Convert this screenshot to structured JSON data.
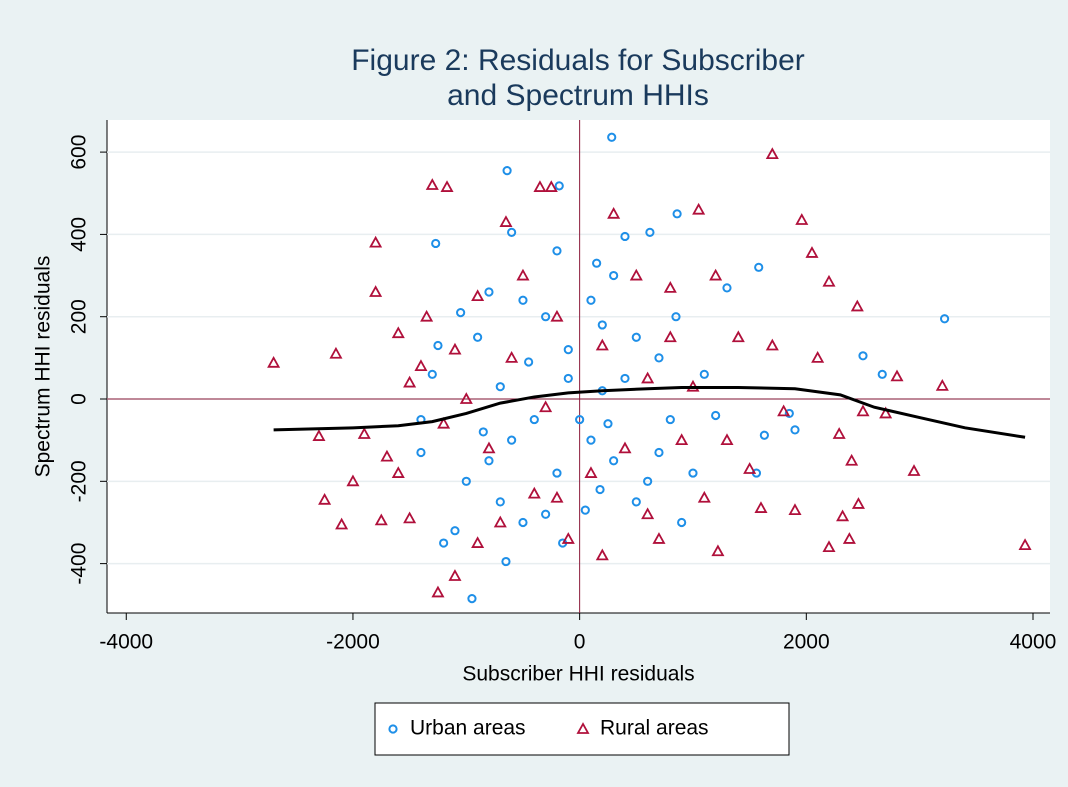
{
  "chart_data": {
    "type": "scatter",
    "title": [
      "Figure 2: Residuals for Subscriber",
      "and Spectrum HHIs"
    ],
    "x_label": "Subscriber HHI residuals",
    "y_label": "Spectrum HHI residuals",
    "xlim": [
      -4170,
      4150
    ],
    "ylim": [
      -520,
      678
    ],
    "xticks": [
      -4000,
      -2000,
      0,
      2000,
      4000
    ],
    "yticks": [
      -400,
      -200,
      0,
      200,
      400,
      600
    ],
    "grid": true,
    "reference_lines": {
      "x": 0,
      "y": 0,
      "color": "#8b1a3a"
    },
    "legend": "bottom",
    "series": [
      {
        "name": "Urban areas",
        "color": "#1e8fe8",
        "marker": "circle",
        "x": [
          283,
          -640,
          -180,
          -1270,
          -600,
          860,
          -200,
          400,
          620,
          1580,
          3220,
          2500,
          2670,
          1630,
          1900,
          1560,
          -1100,
          -1200,
          -950,
          -650,
          900,
          180,
          -1250,
          -1300,
          -800,
          -500,
          -300,
          100,
          300,
          500,
          700,
          -100,
          200,
          -400,
          -600,
          -800,
          100,
          300,
          600,
          -200,
          -700,
          -500,
          -300,
          0,
          400,
          800,
          1100,
          1200,
          -900,
          -1000,
          -700,
          -1400,
          -1400,
          200,
          500,
          -100,
          1000,
          1300,
          -450,
          250,
          700,
          -850,
          -150,
          1850,
          850,
          150,
          -1050,
          50
        ],
        "y": [
          636,
          555,
          518,
          378,
          405,
          450,
          360,
          395,
          405,
          320,
          195,
          105,
          60,
          -88,
          -75,
          -180,
          -320,
          -350,
          -485,
          -395,
          -300,
          -220,
          130,
          60,
          260,
          240,
          200,
          240,
          300,
          150,
          100,
          50,
          20,
          -50,
          -100,
          -150,
          -100,
          -150,
          -200,
          -180,
          -250,
          -300,
          -280,
          -50,
          50,
          -50,
          60,
          -40,
          150,
          -200,
          30,
          -50,
          -130,
          180,
          -250,
          120,
          -180,
          270,
          90,
          -60,
          -130,
          -80,
          -350,
          -35,
          200,
          330,
          210,
          -270
        ]
      },
      {
        "name": "Rural areas",
        "color": "#b0103b",
        "marker": "triangle",
        "x": [
          -2700,
          -2300,
          -2250,
          -2100,
          -2150,
          -1900,
          -1800,
          -1800,
          -1750,
          -1300,
          -1170,
          -1250,
          -1100,
          -650,
          -350,
          -250,
          1050,
          1700,
          1960,
          2050,
          2200,
          2450,
          2290,
          2400,
          2950,
          3200,
          3930,
          2200,
          2380,
          2460,
          2320,
          1600,
          1220,
          200,
          -100,
          700,
          -400,
          -700,
          -1500,
          -1600,
          -1600,
          -1350,
          -900,
          -500,
          300,
          500,
          800,
          1400,
          1700,
          2100,
          2700,
          1800,
          900,
          400,
          100,
          -200,
          -800,
          -1200,
          -1500,
          -1000,
          -600,
          -200,
          200,
          600,
          1000,
          1300,
          1500,
          -1100,
          -1700,
          -2000,
          600,
          1100,
          -900,
          1900,
          -1400,
          2800,
          1200,
          2500,
          -300,
          800
        ],
        "y": [
          88,
          -90,
          -245,
          -305,
          110,
          -85,
          380,
          260,
          -295,
          520,
          515,
          -470,
          -430,
          430,
          515,
          515,
          460,
          595,
          435,
          355,
          285,
          225,
          -85,
          -150,
          -175,
          32,
          -355,
          -360,
          -340,
          -255,
          -285,
          -265,
          -370,
          -380,
          -340,
          -340,
          -230,
          -300,
          -290,
          -180,
          160,
          200,
          250,
          300,
          450,
          300,
          270,
          150,
          130,
          100,
          -35,
          -30,
          -100,
          -120,
          -180,
          -240,
          -120,
          -60,
          40,
          0,
          100,
          200,
          130,
          50,
          30,
          -100,
          -170,
          120,
          -140,
          -200,
          -280,
          -240,
          -350,
          -270,
          80,
          55,
          300,
          -30,
          -20,
          150
        ]
      }
    ],
    "fit": {
      "color": "#000000",
      "x": [
        -2700,
        -2000,
        -1600,
        -1300,
        -1000,
        -700,
        -400,
        -100,
        200,
        600,
        900,
        1400,
        1900,
        2300,
        2600,
        3000,
        3400,
        3930
      ],
      "y": [
        -75,
        -70,
        -65,
        -55,
        -35,
        -10,
        5,
        15,
        20,
        25,
        28,
        28,
        25,
        10,
        -20,
        -45,
        -70,
        -93
      ]
    }
  }
}
